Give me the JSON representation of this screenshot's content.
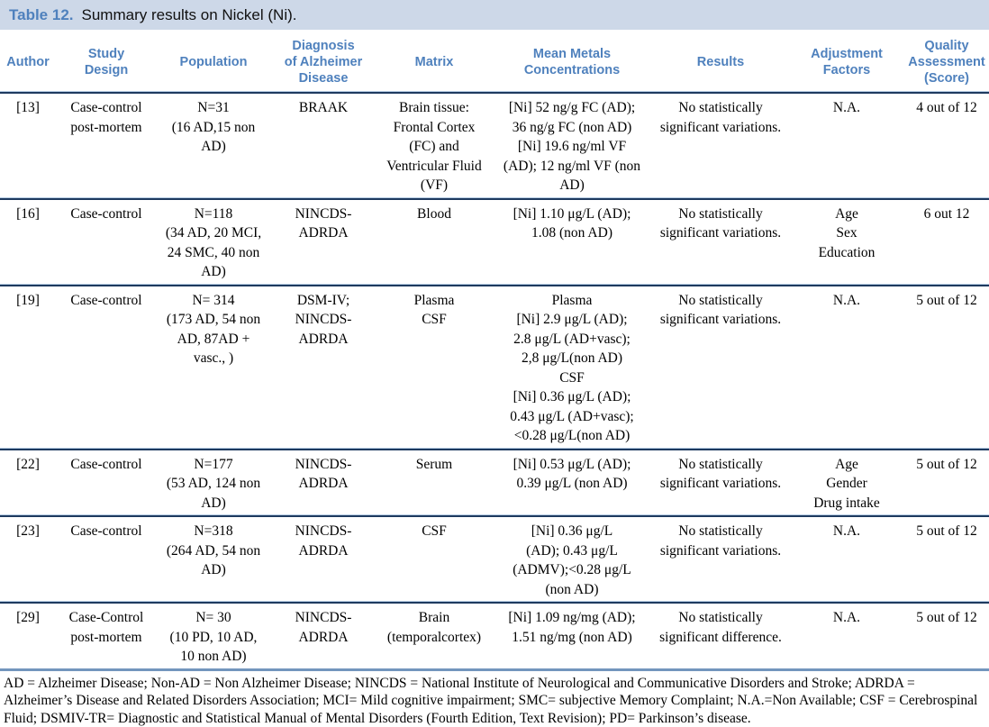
{
  "title": {
    "label": "Table 12.",
    "text": "Summary results on Nickel (Ni)."
  },
  "colors": {
    "title_bar_bg": "#cdd8e8",
    "accent_blue": "#4f81bd",
    "divider_light": "#b7cde4",
    "divider_dark": "#1e3a5f",
    "bottom_border": "#7396bd"
  },
  "table": {
    "columns": [
      {
        "label": "Author"
      },
      {
        "label": "Study\nDesign"
      },
      {
        "label": "Population"
      },
      {
        "label": "Diagnosis\nof Alzheimer\nDisease"
      },
      {
        "label": "Matrix"
      },
      {
        "label": "Mean Metals\nConcentrations"
      },
      {
        "label": "Results"
      },
      {
        "label": "Adjustment\nFactors"
      },
      {
        "label": "Quality\nAssessment\n(Score)"
      }
    ],
    "rows": [
      {
        "cells": [
          "[13]",
          "Case-control\npost-mortem",
          "N=31\n(16 AD,15 non\nAD)",
          "BRAAK",
          "Brain tissue:\nFrontal Cortex\n(FC) and\nVentricular Fluid\n(VF)",
          "[Ni] 52 ng/g FC (AD);\n36 ng/g FC (non AD)\n[Ni] 19.6 ng/ml VF\n(AD); 12 ng/ml VF (non\nAD)",
          "No statistically\nsignificant variations.",
          "N.A.",
          "4 out of 12"
        ]
      },
      {
        "cells": [
          "[16]",
          "Case-control",
          "N=118\n(34 AD, 20 MCI,\n24 SMC, 40 non\nAD)",
          "NINCDS-\nADRDA",
          "Blood",
          "[Ni] 1.10 μg/L (AD);\n1.08 (non AD)",
          "No statistically\nsignificant variations.",
          "Age\nSex\nEducation",
          "6 out 12"
        ]
      },
      {
        "cells": [
          "[19]",
          "Case-control",
          "N= 314\n(173 AD, 54 non\nAD, 87AD +\nvasc., )",
          "DSM-IV;\nNINCDS-\nADRDA",
          "Plasma\nCSF",
          "Plasma\n[Ni] 2.9 μg/L (AD);\n2.8 μg/L (AD+vasc);\n2,8 μg/L(non AD)\nCSF\n[Ni] 0.36 μg/L (AD);\n0.43 μg/L (AD+vasc);\n<0.28 μg/L(non AD)",
          "No statistically\nsignificant variations.",
          "N.A.",
          "5 out of 12"
        ]
      },
      {
        "cells": [
          "[22]",
          "Case-control",
          "N=177\n(53 AD, 124 non\nAD)",
          "NINCDS-\nADRDA",
          "Serum",
          "[Ni] 0.53 μg/L (AD);\n0.39 μg/L (non AD)",
          "No statistically\nsignificant variations.",
          "Age\nGender\nDrug intake",
          "5 out of 12"
        ]
      },
      {
        "cells": [
          "[23]",
          "Case-control",
          "N=318\n(264 AD, 54 non\nAD)",
          "NINCDS-\nADRDA",
          "CSF",
          "[Ni] 0.36 μg/L\n(AD); 0.43 μg/L\n(ADMV);<0.28 μg/L\n(non AD)",
          "No statistically\nsignificant variations.",
          "N.A.",
          "5 out of 12"
        ]
      },
      {
        "cells": [
          "[29]",
          "Case-Control\npost-mortem",
          "N= 30\n(10 PD, 10 AD,\n10 non AD)",
          "NINCDS-\nADRDA",
          "Brain\n(temporalcortex)",
          "[Ni] 1.09 ng/mg (AD);\n1.51 ng/mg (non AD)",
          "No statistically\nsignificant difference.",
          "N.A.",
          "5 out of 12"
        ]
      }
    ]
  },
  "footnote": "AD = Alzheimer Disease; Non-AD = Non Alzheimer Disease; NINCDS = National Institute of Neurological and Communicative Disorders and Stroke; ADRDA = Alzheimer’s Disease and Related Disorders Association; MCI= Mild cognitive impairment; SMC= subjective Memory Complaint; N.A.=Non Available; CSF = Cerebrospinal Fluid; DSMIV-TR= Diagnostic and Statistical Manual of Mental Disorders (Fourth Edition, Text Revision); PD= Parkinson’s disease."
}
